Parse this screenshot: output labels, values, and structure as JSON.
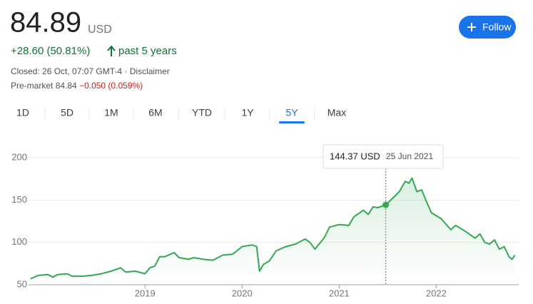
{
  "header": {
    "price": "84.89",
    "currency": "USD",
    "change": "+28.60 (50.81%)",
    "period": "past 5 years",
    "closed": "Closed: 26 Oct, 07:07 GMT-4 · ",
    "disclaimer": "Disclaimer",
    "premarket_label": "Pre-market",
    "premarket_price": "84.84",
    "premarket_change": "−0.050 (0.059%)",
    "follow": "Follow"
  },
  "ranges": [
    "1D",
    "5D",
    "1M",
    "6M",
    "YTD",
    "1Y",
    "5Y",
    "Max"
  ],
  "selected_range": "5Y",
  "chart_data": {
    "type": "line",
    "color": "#34a853",
    "grid": true,
    "x": [
      2017.82,
      2017.9,
      2018.0,
      2018.05,
      2018.1,
      2018.2,
      2018.25,
      2018.35,
      2018.45,
      2018.55,
      2018.65,
      2018.75,
      2018.8,
      2018.9,
      2019.0,
      2019.05,
      2019.1,
      2019.15,
      2019.2,
      2019.3,
      2019.35,
      2019.45,
      2019.5,
      2019.6,
      2019.7,
      2019.8,
      2019.9,
      2020.0,
      2020.1,
      2020.15,
      2020.18,
      2020.22,
      2020.28,
      2020.35,
      2020.45,
      2020.55,
      2020.65,
      2020.7,
      2020.75,
      2020.85,
      2020.9,
      2021.0,
      2021.1,
      2021.15,
      2021.25,
      2021.3,
      2021.35,
      2021.4,
      2021.48,
      2021.55,
      2021.62,
      2021.68,
      2021.72,
      2021.75,
      2021.8,
      2021.85,
      2021.9,
      2021.95,
      2022.05,
      2022.15,
      2022.2,
      2022.3,
      2022.4,
      2022.45,
      2022.5,
      2022.55,
      2022.6,
      2022.65,
      2022.7,
      2022.75,
      2022.78,
      2022.81
    ],
    "values": [
      57,
      61,
      62,
      59,
      62,
      63,
      60,
      60,
      61,
      63,
      66,
      70,
      65,
      66,
      63,
      70,
      72,
      83,
      83,
      88,
      82,
      80,
      82,
      80,
      79,
      85,
      86,
      95,
      97,
      95,
      66,
      74,
      78,
      90,
      95,
      98,
      104,
      100,
      92,
      106,
      118,
      121,
      120,
      130,
      138,
      133,
      142,
      141,
      144.37,
      152,
      160,
      172,
      170,
      176,
      160,
      162,
      148,
      135,
      128,
      115,
      120,
      113,
      105,
      110,
      100,
      98,
      103,
      92,
      95,
      83,
      80,
      84.89
    ],
    "xlim": [
      2017.8,
      2022.85
    ],
    "xticks": [
      2019,
      2020,
      2021,
      2022
    ],
    "ylim": [
      50,
      200
    ],
    "yticks": [
      50,
      100,
      150,
      200
    ],
    "tooltip": {
      "x": 2021.48,
      "value": 144.37,
      "label": "144.37 USD",
      "date": "25 Jun 2021"
    }
  }
}
